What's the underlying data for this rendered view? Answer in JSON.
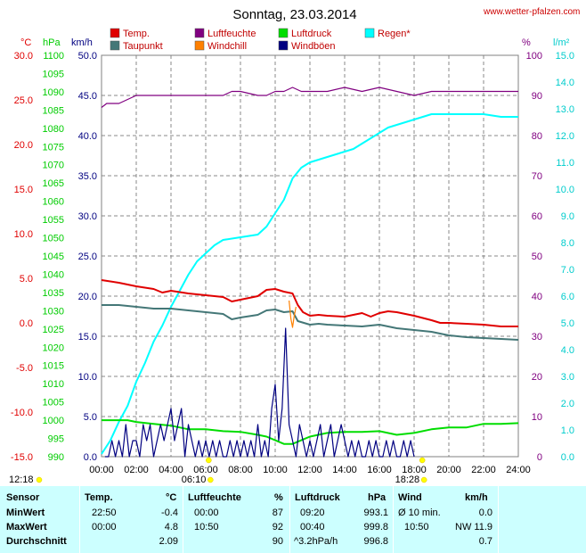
{
  "title": "Sonntag, 23.03.2014",
  "credit": "www.wetter-pfalzen.com",
  "colors": {
    "temp": "#e00000",
    "taupunkt": "#447777",
    "luftfeuchte": "#800080",
    "windchill": "#ff8000",
    "luftdruck": "#00dd00",
    "windboeen": "#000080",
    "regen": "#00ffff",
    "axis_c": "#e00000",
    "axis_hpa": "#00cc00",
    "axis_kmh": "#000080",
    "axis_pct": "#800080",
    "axis_lm2": "#00cccc",
    "stats_bg": "#ccffff"
  },
  "legend": [
    {
      "label": "Temp.",
      "key": "temp"
    },
    {
      "label": "Luftfeuchte",
      "key": "luftfeuchte"
    },
    {
      "label": "Luftdruck",
      "key": "luftdruck"
    },
    {
      "label": "Regen*",
      "key": "regen"
    },
    {
      "label": "Taupunkt",
      "key": "taupunkt"
    },
    {
      "label": "Windchill",
      "key": "windchill"
    },
    {
      "label": "Windböen",
      "key": "windboeen"
    }
  ],
  "units": {
    "c": "°C",
    "hpa": "hPa",
    "kmh": "km/h",
    "pct": "%",
    "lm2": "l/m²"
  },
  "sun": {
    "sunrise_time": "06:10",
    "sunset_time": "18:28",
    "sunrise_label": "12:18",
    "sunrise_hour": 6.17,
    "sunset_hour": 18.47
  },
  "chart_data": {
    "type": "line",
    "title": "Sonntag, 23.03.2014",
    "x_ticks": [
      "00:00",
      "02:00",
      "04:00",
      "06:00",
      "08:00",
      "10:00",
      "12:00",
      "14:00",
      "16:00",
      "18:00",
      "20:00",
      "22:00",
      "24:00"
    ],
    "xlim": [
      0,
      24
    ],
    "axes": {
      "celsius": {
        "ylim": [
          -15,
          30
        ],
        "ticks": [
          "30.0",
          "25.0",
          "20.0",
          "15.0",
          "10.0",
          "5.0",
          "0.0",
          "-5.0",
          "-10.0",
          "-15.0"
        ]
      },
      "hpa": {
        "ylim": [
          990,
          1100
        ],
        "ticks": [
          "1100",
          "1095",
          "1090",
          "1085",
          "1080",
          "1075",
          "1070",
          "1065",
          "1060",
          "1055",
          "1050",
          "1045",
          "1040",
          "1035",
          "1030",
          "1025",
          "1020",
          "1015",
          "1010",
          "1005",
          "1000",
          "995",
          "990"
        ]
      },
      "kmh": {
        "ylim": [
          0,
          50
        ],
        "ticks": [
          "50.0",
          "45.0",
          "40.0",
          "35.0",
          "30.0",
          "25.0",
          "20.0",
          "15.0",
          "10.0",
          "5.0",
          "0.0"
        ]
      },
      "percent": {
        "ylim": [
          0,
          100
        ],
        "ticks": [
          "100",
          "90",
          "80",
          "70",
          "60",
          "50",
          "40",
          "30",
          "20",
          "10",
          "0"
        ]
      },
      "lm2": {
        "ylim": [
          0,
          15
        ],
        "ticks": [
          "15.0",
          "14.0",
          "13.0",
          "12.0",
          "11.0",
          "10.0",
          "9.0",
          "8.0",
          "7.0",
          "6.0",
          "5.0",
          "4.0",
          "3.0",
          "2.0",
          "1.0",
          "0.0"
        ]
      }
    },
    "series": [
      {
        "name": "Temp.",
        "axis": "celsius",
        "color": "#e00000",
        "x": [
          0,
          1,
          2,
          3,
          3.5,
          4,
          5,
          6,
          7,
          7.5,
          8,
          9,
          9.5,
          10,
          10.5,
          11,
          11.3,
          11.6,
          12,
          12.5,
          13,
          14,
          15,
          15.5,
          16,
          16.5,
          17,
          18,
          19,
          19.5,
          20,
          21,
          22,
          23,
          24
        ],
        "y": [
          4.8,
          4.5,
          4.1,
          3.8,
          3.4,
          3.6,
          3.3,
          3.1,
          2.9,
          2.4,
          2.6,
          3.0,
          3.7,
          3.8,
          3.5,
          3.3,
          2.0,
          1.2,
          0.8,
          0.9,
          0.8,
          0.7,
          1.1,
          0.7,
          1.1,
          1.3,
          1.2,
          0.8,
          0.3,
          0.0,
          0.0,
          -0.1,
          -0.2,
          -0.4,
          -0.4
        ]
      },
      {
        "name": "Taupunkt",
        "axis": "celsius",
        "color": "#447777",
        "x": [
          0,
          1,
          2,
          3,
          4,
          5,
          6,
          7,
          7.5,
          8,
          9,
          9.5,
          10,
          10.5,
          11,
          11.3,
          12,
          12.5,
          13,
          14,
          15,
          16,
          17,
          18,
          19,
          20,
          21,
          22,
          23,
          24
        ],
        "y": [
          2.0,
          2.0,
          1.8,
          1.6,
          1.6,
          1.4,
          1.2,
          1.0,
          0.4,
          0.6,
          0.9,
          1.4,
          1.5,
          1.2,
          1.3,
          0.2,
          -0.2,
          -0.1,
          -0.2,
          -0.3,
          -0.4,
          -0.2,
          -0.6,
          -0.8,
          -1.0,
          -1.4,
          -1.6,
          -1.7,
          -1.8,
          -1.9
        ]
      },
      {
        "name": "Luftfeuchte",
        "axis": "percent",
        "color": "#800080",
        "x": [
          0,
          0.3,
          1,
          1.5,
          2,
          4,
          7,
          7.5,
          8,
          9,
          9.5,
          10,
          10.5,
          11,
          11.5,
          12,
          13,
          14,
          15,
          16,
          17,
          18,
          19,
          20,
          21,
          22,
          24
        ],
        "y": [
          87,
          88,
          88,
          89,
          90,
          90,
          90,
          91,
          91,
          90,
          90,
          91,
          91,
          92,
          91,
          91,
          91,
          92,
          91,
          92,
          91,
          90,
          91,
          91,
          91,
          91,
          91
        ]
      },
      {
        "name": "Windchill",
        "axis": "celsius",
        "color": "#ff8000",
        "x": [
          10.8,
          10.9,
          11.0,
          11.1,
          11.2
        ],
        "y": [
          2.5,
          0.5,
          -0.5,
          0.8,
          1.8
        ]
      },
      {
        "name": "Luftdruck",
        "axis": "hpa",
        "color": "#00dd00",
        "x": [
          0,
          1,
          1.5,
          2,
          3,
          4,
          5,
          6,
          7,
          8,
          9,
          9.5,
          10,
          10.5,
          11,
          11.5,
          12,
          13,
          14,
          15,
          16,
          17,
          18,
          19,
          20,
          21,
          22,
          23,
          24
        ],
        "y": [
          1000,
          1000,
          1000,
          999.5,
          999,
          998.5,
          997.5,
          997.5,
          997,
          996.8,
          996,
          995.5,
          994.5,
          993.5,
          993.5,
          994.5,
          995.5,
          996.5,
          996.8,
          996.8,
          997,
          996,
          996.5,
          997.5,
          998,
          998,
          999,
          999,
          999.2
        ]
      },
      {
        "name": "Regen*",
        "axis": "lm2",
        "color": "#00ffff",
        "x": [
          0,
          0.5,
          1,
          1.5,
          2,
          2.5,
          3,
          3.5,
          4,
          4.5,
          5,
          5.5,
          6,
          6.5,
          7,
          8,
          9,
          9.5,
          10,
          10.5,
          11,
          11.5,
          12,
          12.5,
          13,
          13.5,
          14,
          14.5,
          15,
          15.5,
          16,
          16.5,
          17,
          17.5,
          18,
          18.5,
          19,
          19.5,
          20,
          21,
          22,
          23,
          24
        ],
        "y": [
          0.1,
          0.6,
          1.3,
          1.9,
          2.8,
          3.5,
          4.3,
          4.9,
          5.6,
          6.2,
          6.8,
          7.3,
          7.6,
          7.9,
          8.1,
          8.2,
          8.3,
          8.6,
          9.1,
          9.6,
          10.4,
          10.8,
          11.0,
          11.1,
          11.2,
          11.3,
          11.4,
          11.5,
          11.7,
          11.9,
          12.1,
          12.3,
          12.4,
          12.5,
          12.6,
          12.7,
          12.8,
          12.8,
          12.8,
          12.8,
          12.8,
          12.7,
          12.7
        ]
      },
      {
        "name": "Windböen",
        "axis": "kmh",
        "color": "#000080",
        "x": [
          0.2,
          0.4,
          0.6,
          0.8,
          1.0,
          1.2,
          1.4,
          1.6,
          1.8,
          2.0,
          2.2,
          2.4,
          2.6,
          2.8,
          3.0,
          3.2,
          3.4,
          3.6,
          3.8,
          4.0,
          4.2,
          4.4,
          4.6,
          4.8,
          5.0,
          5.2,
          5.4,
          5.6,
          5.8,
          6.0,
          6.2,
          6.4,
          6.6,
          6.8,
          7.0,
          7.2,
          7.4,
          7.6,
          7.8,
          8.0,
          8.2,
          8.4,
          8.6,
          8.8,
          9.0,
          9.2,
          9.4,
          9.6,
          9.8,
          10.0,
          10.2,
          10.4,
          10.6,
          10.8,
          11.0,
          11.2,
          11.4,
          11.6,
          11.8,
          12.0,
          12.2,
          12.4,
          12.6,
          12.8,
          13.0,
          13.2,
          13.4,
          13.6,
          13.8,
          14.0,
          14.2,
          14.4,
          14.6,
          14.8,
          15.0,
          15.2,
          15.4,
          15.6,
          15.8,
          16.0,
          16.2,
          16.4,
          16.6,
          16.8,
          17.0,
          17.2,
          17.4,
          17.6,
          17.8,
          18.0
        ],
        "y": [
          0,
          0,
          2.0,
          0,
          2.0,
          0,
          4.0,
          0,
          2.0,
          2.0,
          0,
          4.0,
          2.0,
          4.0,
          0,
          2.0,
          4.0,
          2.0,
          4.0,
          6.0,
          2.0,
          4.0,
          6.0,
          0,
          4.0,
          2.0,
          0,
          2.0,
          0,
          2.0,
          0,
          2.0,
          0,
          2.0,
          0,
          0,
          2.0,
          0,
          2.0,
          0,
          2.0,
          0,
          2.0,
          0,
          4.0,
          0,
          2.0,
          0,
          6.0,
          9.0,
          2.0,
          6.0,
          16.0,
          4.0,
          2.0,
          0,
          4.0,
          2.0,
          0,
          2.0,
          0,
          2.0,
          4.0,
          0,
          2.0,
          4.0,
          0,
          2.0,
          4.0,
          2.0,
          0,
          2.0,
          0,
          2.0,
          0,
          0,
          2.0,
          0,
          2.0,
          0,
          0,
          2.0,
          0,
          2.0,
          0,
          0,
          2.0,
          0,
          2.0,
          0
        ]
      }
    ]
  },
  "stats": {
    "headers": {
      "sensor": "Sensor",
      "temp": "Temp.",
      "temp_unit": "°C",
      "feuchte": "Luftfeuchte",
      "feuchte_unit": "%",
      "druck": "Luftdruck",
      "druck_unit": "hPa",
      "wind": "Wind",
      "wind_unit": "km/h"
    },
    "rows": [
      {
        "label": "MinWert",
        "t_time": "22:50",
        "t_val": "-0.4",
        "f_time": "00:00",
        "f_val": "87",
        "d_time": "09:20",
        "d_val": "993.1",
        "w_time": "Ø 10 min.",
        "w_val": "0.0"
      },
      {
        "label": "MaxWert",
        "t_time": "00:00",
        "t_val": "4.8",
        "f_time": "10:50",
        "f_val": "92",
        "d_time": "00:40",
        "d_val": "999.8",
        "w_time": "10:50",
        "w_val": "NW 11.9"
      },
      {
        "label": "Durchschnitt",
        "t_time": "",
        "t_val": "2.09",
        "f_time": "",
        "f_val": "90",
        "d_time": "^3.2hPa/h",
        "d_val": "996.8",
        "w_time": "",
        "w_val": "0.7"
      }
    ]
  }
}
